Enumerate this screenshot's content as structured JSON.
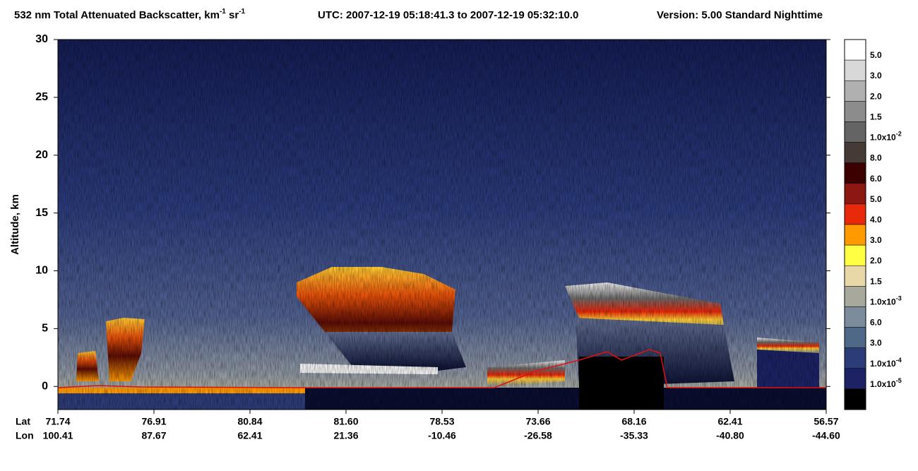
{
  "chart_data": {
    "type": "curtain",
    "title": [
      "532 nm Total Attenuated Backscatter, km",
      "-1",
      " sr",
      "-1"
    ],
    "utc": "UTC:  2007-12-19 05:18:41.3  to  2007-12-19 05:32:10.0",
    "version": "Version: 5.00  Standard  Nighttime",
    "ylabel": "Altitude, km",
    "ylim": [
      -2,
      30
    ],
    "yticks": [
      0,
      5,
      10,
      15,
      20,
      25,
      30
    ],
    "x_row_labels": [
      "Lat",
      "Lon"
    ],
    "lat_labels": [
      "71.74",
      "76.91",
      "80.84",
      "81.60",
      "78.53",
      "73.66",
      "68.16",
      "62.41",
      "56.57"
    ],
    "lon_labels": [
      "100.41",
      "87.67",
      "62.41",
      "21.36",
      "-10.46",
      "-26.58",
      "-35.33",
      "-40.80",
      "-44.60"
    ],
    "colorbar": {
      "colors": [
        "#ffffff",
        "#d8d8d8",
        "#b0b0b0",
        "#8c8c8c",
        "#646464",
        "#463a36",
        "#3c0000",
        "#8c1812",
        "#e82a0a",
        "#ff9a00",
        "#ffff44",
        "#e8d8a8",
        "#a8a89c",
        "#7c8c9c",
        "#506888",
        "#2c3c78",
        "#1c2264",
        "#000000"
      ],
      "labels": [
        {
          "text": "5.0"
        },
        {
          "text": "3.0"
        },
        {
          "text": "2.0"
        },
        {
          "text": "1.5"
        },
        {
          "text": "1.0x10",
          "exp": "-2"
        },
        {
          "text": "8.0"
        },
        {
          "text": "6.0"
        },
        {
          "text": "5.0"
        },
        {
          "text": "4.0"
        },
        {
          "text": "3.0"
        },
        {
          "text": "2.0"
        },
        {
          "text": "1.5"
        },
        {
          "text": "1.0x10",
          "exp": "-3"
        },
        {
          "text": "6.0"
        },
        {
          "text": "3.0"
        },
        {
          "text": "1.0x10",
          "exp": "-4"
        },
        {
          "text": "1.0x10",
          "exp": "-5"
        }
      ]
    }
  }
}
